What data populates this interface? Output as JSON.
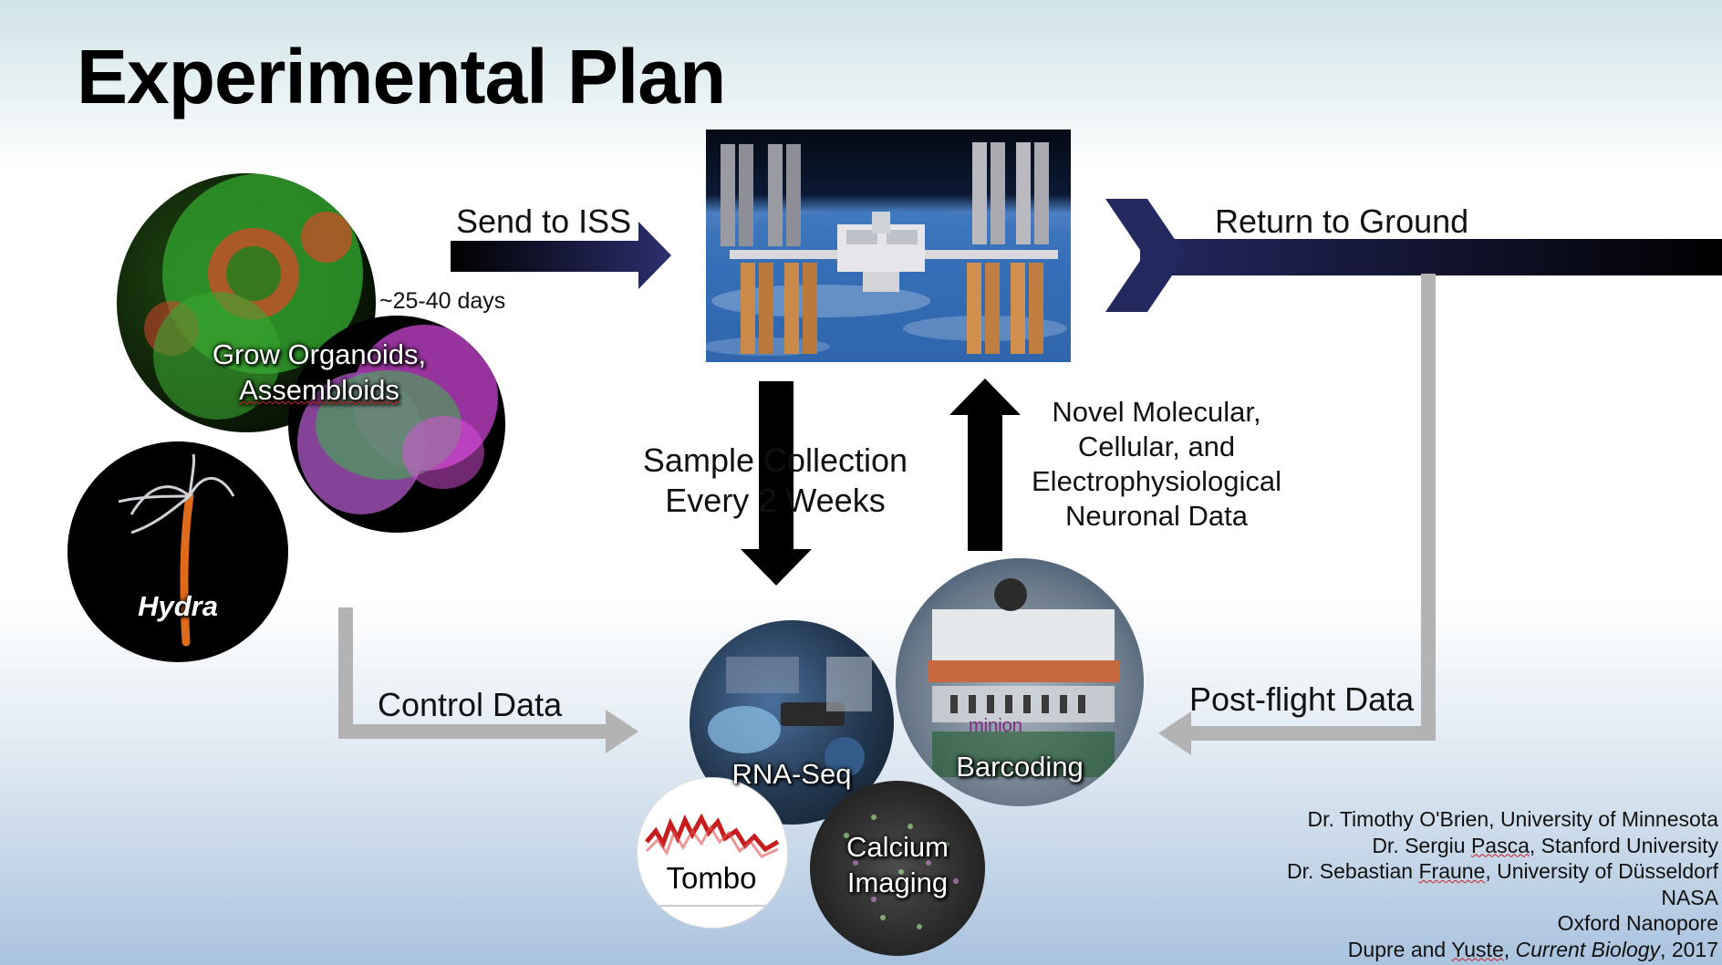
{
  "title": "Experimental Plan",
  "labels": {
    "send_to_iss": "Send to ISS",
    "days": "~25-40 days",
    "return_to_ground": "Return to Ground",
    "sample_collection_1": "Sample Collection",
    "sample_collection_2": "Every 2 Weeks",
    "novel_1": "Novel Molecular,",
    "novel_2": "Cellular, and",
    "novel_3": "Electrophysiological",
    "novel_4": "Neuronal Data",
    "control_data": "Control Data",
    "postflight_data": "Post-flight Data"
  },
  "circles": {
    "organoids_1": "Grow Organoids,",
    "organoids_2": "Assembloids",
    "hydra": "Hydra",
    "rnaseq": "RNA-Seq",
    "barcoding": "Barcoding",
    "tombo": "Tombo",
    "calcium_1": "Calcium",
    "calcium_2": "Imaging",
    "minion_text": "minion"
  },
  "credits": {
    "line1": "Dr. Timothy O'Brien, University of Minnesota",
    "line2a": "Dr. Sergiu ",
    "line2b": "Pasca",
    "line2c": ", Stanford University",
    "line3a": "Dr. Sebastian ",
    "line3b": "Fraune",
    "line3c": ", University of Düsseldorf",
    "line4": "NASA",
    "line5": "Oxford Nanopore",
    "line6a": "Dupre and ",
    "line6b": "Yuste",
    "line6c": ", ",
    "line6d": "Current Biology",
    "line6e": ", 2017"
  },
  "colors": {
    "arrow_navy": "#232760",
    "arrow_gray": "#b3b3b3",
    "brain_green": "#3fbf3f",
    "brain_red": "#e04a2a",
    "magenta": "#d13bd6",
    "hydra_orange": "#e06a1c"
  },
  "icons": {
    "iss": "space-station-photo",
    "arrow_right": "arrow-right-icon",
    "arrow_down": "arrow-down-icon",
    "arrow_up": "arrow-up-icon",
    "chevron": "chevron-right-icon"
  }
}
